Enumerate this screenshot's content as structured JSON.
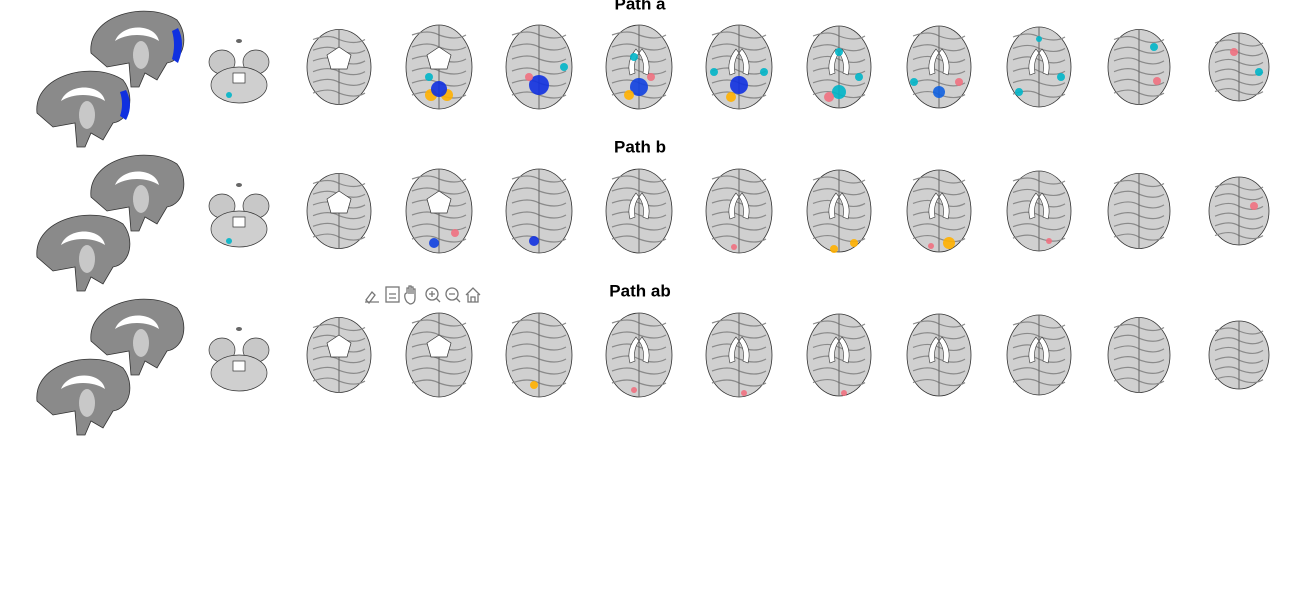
{
  "panels": [
    {
      "title": "Path a"
    },
    {
      "title": "Path b"
    },
    {
      "title": "Path ab"
    }
  ]
}
